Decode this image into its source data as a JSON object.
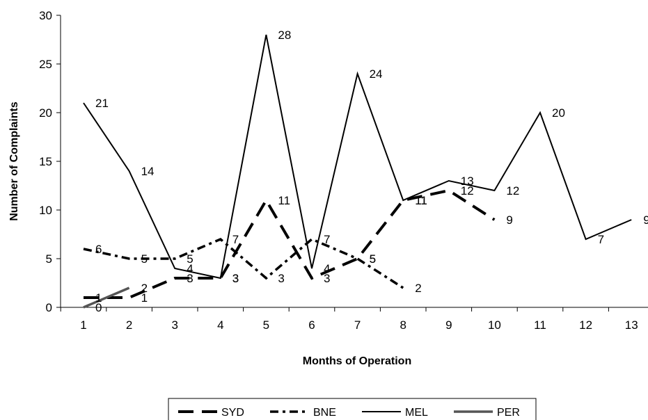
{
  "chart_data": {
    "type": "line",
    "title": "",
    "xlabel": "Months of Operation",
    "ylabel": "Number of Complaints",
    "categories": [
      "1",
      "2",
      "3",
      "4",
      "5",
      "6",
      "7",
      "8",
      "9",
      "10",
      "11",
      "12",
      "13"
    ],
    "ylim": [
      0,
      30
    ],
    "yticks": [
      0,
      5,
      10,
      15,
      20,
      25,
      30
    ],
    "grid": false,
    "legend_position": "bottom",
    "series": [
      {
        "name": "SYD",
        "style": "long-dash",
        "color": "#000000",
        "values": [
          1,
          1,
          3,
          3,
          11,
          3,
          5,
          11,
          12,
          9,
          null,
          null,
          null
        ]
      },
      {
        "name": "BNE",
        "style": "dash-dot",
        "color": "#000000",
        "values": [
          6,
          5,
          5,
          7,
          3,
          7,
          5,
          2,
          null,
          null,
          null,
          null,
          null
        ]
      },
      {
        "name": "MEL",
        "style": "solid",
        "color": "#000000",
        "values": [
          21,
          14,
          4,
          3,
          28,
          4,
          24,
          11,
          13,
          12,
          20,
          7,
          9
        ]
      },
      {
        "name": "PER",
        "style": "solid",
        "color": "#555555",
        "values": [
          0,
          2,
          null,
          null,
          null,
          null,
          null,
          null,
          null,
          null,
          null,
          null,
          null
        ]
      }
    ]
  }
}
